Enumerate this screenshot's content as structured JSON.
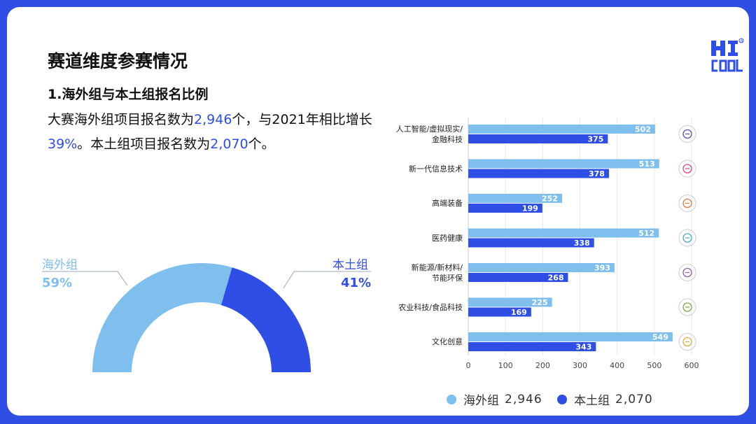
{
  "slide": {
    "title": "赛道维度参赛情况",
    "section_title": "1.海外组与本土组报名比例",
    "desc_part1": "大赛海外组项目报名数为",
    "desc_hl1": "2,946",
    "desc_part2": "个，与2021年相比增长",
    "desc_hl2": "39%",
    "desc_part3": "。本土组项目报名数为",
    "desc_hl3": "2,070",
    "desc_part4": "个。",
    "logo_text": "HI COOL"
  },
  "colors": {
    "overseas": "#7fbfee",
    "local": "#2f4ee6",
    "border": "#2f4ee6"
  },
  "chart_data": [
    {
      "type": "pie",
      "variant": "half-donut",
      "labels": [
        "海外组",
        "本土组"
      ],
      "values": [
        59,
        41
      ],
      "value_labels": [
        "59%",
        "41%"
      ]
    },
    {
      "type": "bar",
      "orientation": "horizontal",
      "categories": [
        "人工智能/虚拟现实/\n金融科技",
        "新一代信息技术",
        "高端装备",
        "医药健康",
        "新能源/新材料/\n节能环保",
        "农业科技/食品科技",
        "文化创意"
      ],
      "series": [
        {
          "name": "海外组",
          "values": [
            502,
            513,
            252,
            512,
            393,
            225,
            549
          ]
        },
        {
          "name": "本土组",
          "values": [
            375,
            378,
            199,
            338,
            268,
            169,
            343
          ]
        }
      ],
      "xlim": [
        0,
        600
      ],
      "xticks": [
        0,
        100,
        200,
        300,
        400,
        500,
        600
      ],
      "grid": true,
      "legend": [
        {
          "name": "海外组",
          "total": "2,946"
        },
        {
          "name": "本土组",
          "total": "2,070"
        }
      ],
      "legend_position": "bottom",
      "row_icons": [
        "ai-chip-icon",
        "signal-broadcast-icon",
        "robot-arm-icon",
        "dna-icon",
        "solar-panel-icon",
        "wheat-grain-icon",
        "palette-icon"
      ]
    }
  ]
}
